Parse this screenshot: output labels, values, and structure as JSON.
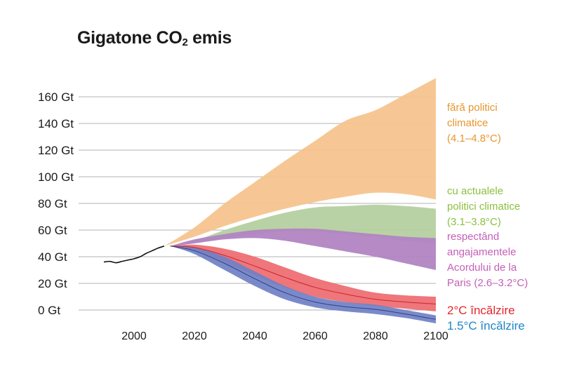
{
  "title": {
    "main": "Gigatone CO",
    "sub": "2",
    "rest": " emis"
  },
  "chart_data": {
    "type": "area",
    "title": "Gigatone CO₂ emis",
    "x_ticks": [
      "2000",
      "2020",
      "2040",
      "2060",
      "2080",
      "2100"
    ],
    "y_ticks": [
      "0 Gt",
      "20 Gt",
      "40 Gt",
      "60 Gt",
      "80 Gt",
      "100 Gt",
      "120 Gt",
      "140 Gt",
      "160 Gt"
    ],
    "xlim": [
      1990,
      2100
    ],
    "ylim": [
      0,
      160
    ],
    "historical": {
      "x": [
        1990,
        1992,
        1994,
        1996,
        1998,
        2000,
        2002,
        2004,
        2006,
        2008,
        2010
      ],
      "y": [
        36,
        36.5,
        35.5,
        36.5,
        37.5,
        38.5,
        40,
        42.5,
        44.5,
        46.5,
        48
      ]
    },
    "series": [
      {
        "name": "fără politici climatice (4.1–4.8°C)",
        "legend_lines": [
          "fără politici",
          "climatice",
          "(4.1–4.8°C)"
        ],
        "color": "#f5c48e",
        "label_color": "#e8952f",
        "x": [
          2010,
          2020,
          2030,
          2040,
          2050,
          2060,
          2070,
          2080,
          2090,
          2100
        ],
        "lower": [
          48,
          55,
          63,
          70,
          76,
          81,
          85,
          88,
          87,
          83
        ],
        "upper": [
          48,
          62,
          80,
          96,
          112,
          127,
          142,
          150,
          162,
          174
        ]
      },
      {
        "name": "cu actualele politici climatice (3.1–3.8°C)",
        "legend_lines": [
          "cu actualele",
          "politici climatice",
          "(3.1–3.8°C)"
        ],
        "color": "#b5d0a0",
        "label_color": "#8cbf3f",
        "x": [
          2012,
          2020,
          2030,
          2040,
          2050,
          2060,
          2070,
          2080,
          2090,
          2100
        ],
        "lower": [
          48,
          50,
          54,
          57,
          59,
          59,
          57,
          55,
          52,
          50
        ],
        "upper": [
          48,
          52,
          60,
          67,
          73,
          77,
          78,
          79,
          78,
          76
        ]
      },
      {
        "name": "respectând angajamentele Acordului de la Paris (2.6–3.2°C)",
        "legend_lines": [
          "respectând",
          "angajamentele",
          "Acordului de la",
          "Paris (2.6–3.2°C)"
        ],
        "color": "#b184c2",
        "label_color": "#c45fb7",
        "x": [
          2012,
          2020,
          2030,
          2040,
          2050,
          2060,
          2070,
          2080,
          2090,
          2100
        ],
        "lower": [
          48,
          50,
          53,
          54,
          52,
          48,
          44,
          40,
          35,
          30
        ],
        "upper": [
          48,
          53,
          57,
          60,
          61,
          61,
          59,
          57,
          55,
          54
        ]
      },
      {
        "name": "2°C încălzire",
        "legend_lines": [
          "2°C încălzire"
        ],
        "color": "#ee6a6f",
        "label_color": "#e3262c",
        "x": [
          2012,
          2020,
          2030,
          2040,
          2050,
          2060,
          2070,
          2080,
          2090,
          2100
        ],
        "lower": [
          48,
          45,
          36,
          26,
          17,
          10,
          6,
          3,
          1,
          -1
        ],
        "upper": [
          48,
          49,
          46,
          40,
          32,
          24,
          18,
          13,
          11,
          10
        ]
      },
      {
        "name": "1.5°C încălzire",
        "legend_lines": [
          "1.5°C încălzire"
        ],
        "color": "#6f80c4",
        "label_color": "#1e86c7",
        "x": [
          2012,
          2020,
          2030,
          2040,
          2050,
          2060,
          2070,
          2080,
          2090,
          2100
        ],
        "lower": [
          48,
          42,
          30,
          18,
          8,
          2,
          -1,
          -3,
          -6,
          -10
        ],
        "upper": [
          48,
          47,
          40,
          29,
          18,
          10,
          6,
          4,
          0,
          -4
        ]
      }
    ],
    "grid": true
  }
}
